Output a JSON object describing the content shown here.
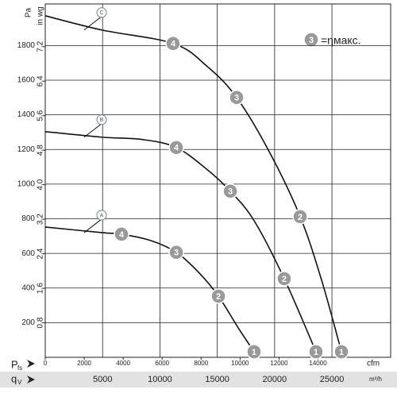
{
  "chart_data": {
    "type": "line",
    "y_label": "P",
    "y_label_sub": "fs",
    "y_unit": "Pa",
    "y2_unit": "in wg",
    "x_label": "q",
    "x_label_sub": "V",
    "x_unit": "m³/h",
    "x2_unit": "cfm",
    "xlim": [
      0,
      30120
    ],
    "xticks": [
      5000,
      10000,
      15000,
      20000,
      25000
    ],
    "x2lim": [
      0,
      17728
    ],
    "x2ticks": [
      0,
      2000,
      4000,
      6000,
      8000,
      10000,
      12000,
      14000
    ],
    "ylim": [
      0,
      2040
    ],
    "yticks": [
      200,
      400,
      600,
      800,
      1000,
      1200,
      1400,
      1600,
      1800
    ],
    "y2lim": [
      0,
      8.19
    ],
    "y2ticks": [
      {
        "value": 0.8,
        "label": "0,8"
      },
      {
        "value": 1.6,
        "label": "1,6"
      },
      {
        "value": 2.4,
        "label": "2,4"
      },
      {
        "value": 3.2,
        "label": "3,2"
      },
      {
        "value": 4.0,
        "label": "4,0"
      },
      {
        "value": 4.8,
        "label": "4,8"
      },
      {
        "value": 5.6,
        "label": "5,6"
      },
      {
        "value": 6.4,
        "label": "6,4"
      },
      {
        "value": 7.2,
        "label": "7,2"
      }
    ],
    "grid": true,
    "legend": {
      "symbol": "3",
      "text": "=ηмакс."
    },
    "series": [
      {
        "name": "C",
        "color": "#111111",
        "x": [
          0,
          4917,
          11150,
          14060,
          16690,
          19600,
          22230,
          24100,
          25830
        ],
        "values": [
          1972,
          1890,
          1812,
          1683,
          1500,
          1179,
          812,
          445,
          32
        ],
        "point_labels": [
          null,
          null,
          "4",
          null,
          "3",
          null,
          "2",
          null,
          "1"
        ]
      },
      {
        "name": "B",
        "color": "#111111",
        "x": [
          0,
          4917,
          8520,
          11430,
          14060,
          16140,
          18210,
          20840,
          23610
        ],
        "values": [
          1303,
          1271,
          1257,
          1211,
          1087,
          959,
          789,
          454,
          32
        ],
        "point_labels": [
          null,
          null,
          null,
          "4",
          null,
          "3",
          null,
          "2",
          "1"
        ]
      },
      {
        "name": "A",
        "color": "#111111",
        "x": [
          0,
          4917,
          6650,
          9210,
          11430,
          13370,
          15100,
          16830,
          18210
        ],
        "values": [
          752,
          720,
          711,
          674,
          606,
          491,
          353,
          170,
          32
        ],
        "point_labels": [
          null,
          null,
          "4",
          null,
          "3",
          null,
          "2",
          null,
          "1"
        ]
      }
    ]
  }
}
